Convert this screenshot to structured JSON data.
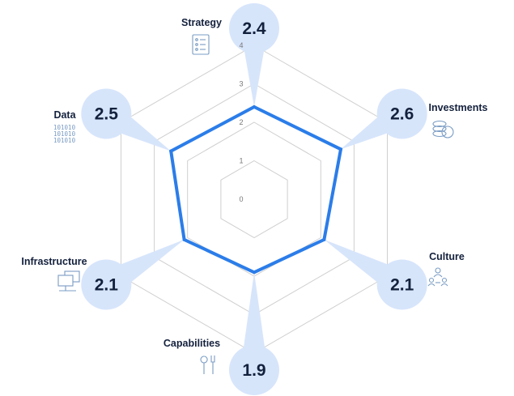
{
  "chart_data": {
    "type": "radar",
    "title": "",
    "rmax": 4,
    "ticks": [
      "0",
      "1",
      "2",
      "3",
      "4"
    ],
    "grid": true,
    "categories": [
      "Strategy",
      "Investments",
      "Culture",
      "Capabilities",
      "Infrastructure",
      "Data"
    ],
    "values": [
      2.4,
      2.6,
      2.1,
      1.9,
      2.1,
      2.5
    ],
    "value_labels": [
      "2.4",
      "2.6",
      "2.1",
      "1.9",
      "2.1",
      "2.5"
    ],
    "icons": [
      "document-list-icon",
      "coin-stack-icon",
      "people-network-icon",
      "tools-icon",
      "computer-network-icon",
      "binary-data-icon"
    ]
  },
  "colors": {
    "series": "#2b7de9",
    "bubble": "#d7e5fb",
    "grid": "#cfcfcf",
    "text": "#14213d",
    "icon": "#7a9cc4"
  }
}
